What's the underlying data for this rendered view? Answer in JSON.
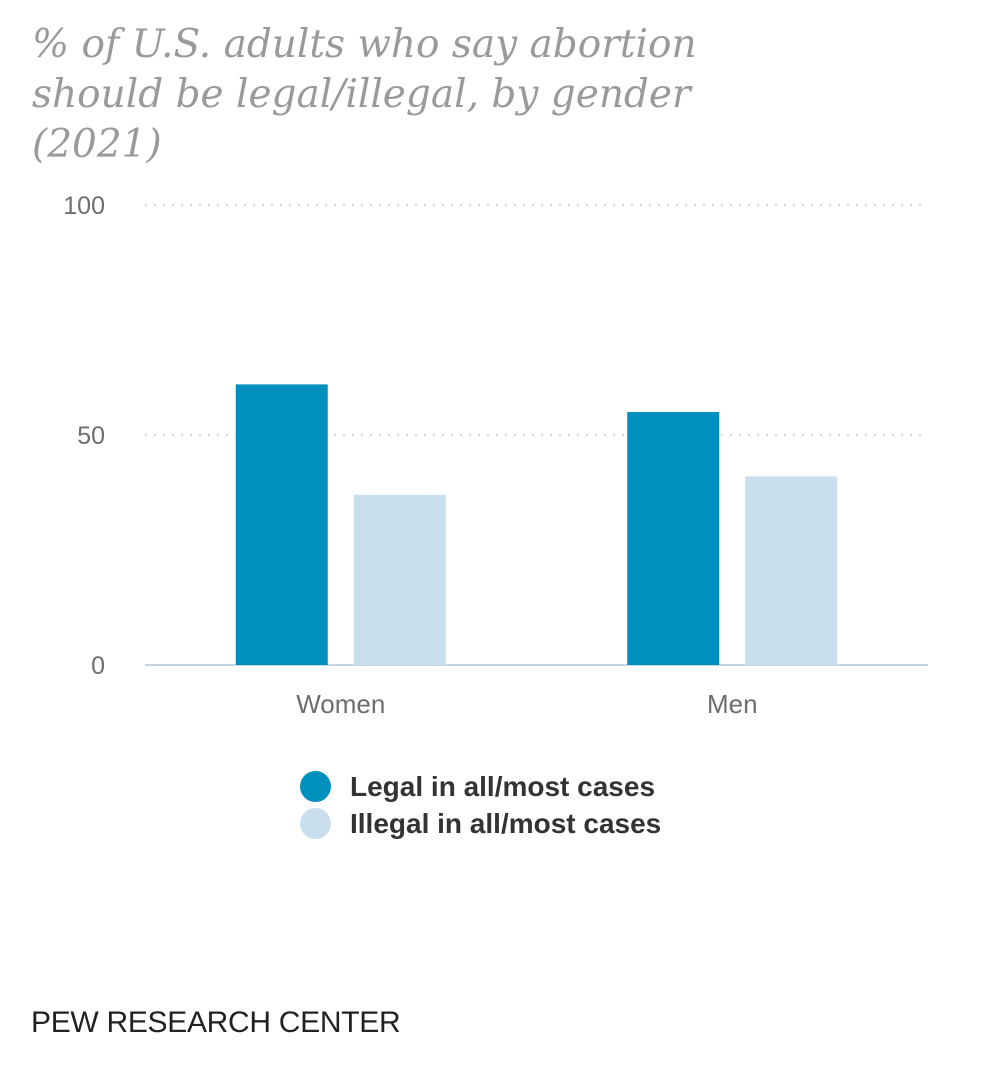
{
  "chart_data": {
    "type": "bar",
    "title": "% of U.S. adults who say abortion should be legal/illegal, by gender (2021)",
    "categories": [
      "Women",
      "Men"
    ],
    "series": [
      {
        "name": "Legal in all/most cases",
        "values": [
          61,
          55
        ],
        "color": "#0090be"
      },
      {
        "name": "Illegal in all/most cases",
        "values": [
          37,
          41
        ],
        "color": "#cadfee"
      }
    ],
    "ylim": [
      0,
      100
    ],
    "yticks": [
      0,
      50,
      100
    ],
    "xlabel": "",
    "ylabel": "",
    "grid": true,
    "legend": "bottom"
  },
  "source": "PEW RESEARCH CENTER"
}
